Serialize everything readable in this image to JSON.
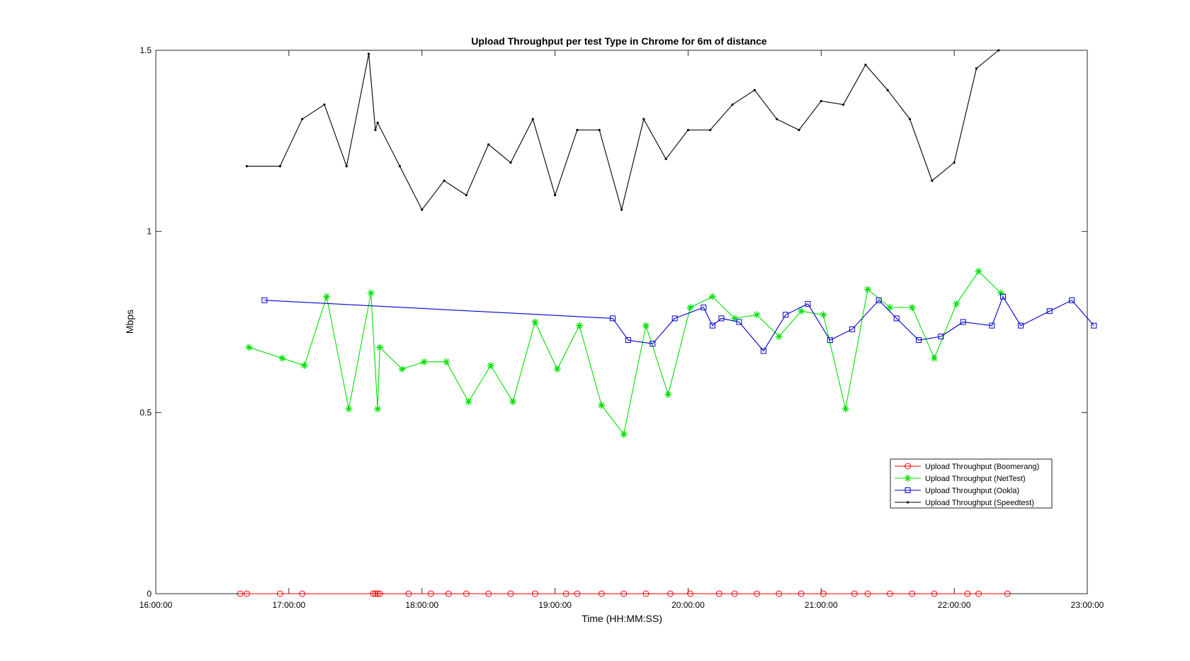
{
  "chart_data": {
    "type": "line",
    "title": "Upload Throughput per test Type in Chrome for 6m of distance",
    "xlabel": "Time (HH:MM:SS)",
    "ylabel": "Mbps",
    "xlim": [
      "16:00:00",
      "23:00:00"
    ],
    "ylim": [
      0,
      1.5
    ],
    "x_ticks": [
      "16:00:00",
      "17:00:00",
      "18:00:00",
      "19:00:00",
      "20:00:00",
      "21:00:00",
      "22:00:00",
      "23:00:00"
    ],
    "y_ticks": [
      "0",
      "0.5",
      "1",
      "1.5"
    ],
    "grid": false,
    "legend_position": "lower-right",
    "series": [
      {
        "name": "Upload Throughput (Boomerang)",
        "color": "#ff0000",
        "marker": "circle",
        "x": [
          "16:38:00",
          "16:41:00",
          "16:56:00",
          "17:06:00",
          "17:38:00",
          "17:39:00",
          "17:40:00",
          "17:41:00",
          "17:54:00",
          "18:04:00",
          "18:12:00",
          "18:20:00",
          "18:30:00",
          "18:40:00",
          "18:51:00",
          "19:05:00",
          "19:10:00",
          "19:21:00",
          "19:31:00",
          "19:41:00",
          "19:52:00",
          "20:01:00",
          "20:14:00",
          "20:21:00",
          "20:31:00",
          "20:41:00",
          "20:51:00",
          "21:01:00",
          "21:15:00",
          "21:21:00",
          "21:31:00",
          "21:41:00",
          "21:51:00",
          "22:06:00",
          "22:11:00",
          "22:24:00"
        ],
        "y": [
          0,
          0,
          0,
          0,
          0,
          0,
          0,
          0,
          0,
          0,
          0,
          0,
          0,
          0,
          0,
          0,
          0,
          0,
          0,
          0,
          0,
          0,
          0,
          0,
          0,
          0,
          0,
          0,
          0,
          0,
          0,
          0,
          0,
          0,
          0,
          0
        ]
      },
      {
        "name": "Upload Throughput (NetTest)",
        "color": "#00e000",
        "marker": "asterisk",
        "x": [
          "16:42:00",
          "16:57:00",
          "17:07:00",
          "17:17:00",
          "17:27:00",
          "17:37:00",
          "17:40:00",
          "17:41:00",
          "17:51:00",
          "18:01:00",
          "18:11:00",
          "18:21:00",
          "18:31:00",
          "18:41:00",
          "18:51:00",
          "19:01:00",
          "19:11:00",
          "19:21:00",
          "19:31:00",
          "19:41:00",
          "19:51:00",
          "20:01:00",
          "20:11:00",
          "20:21:00",
          "20:31:00",
          "20:41:00",
          "20:51:00",
          "21:01:00",
          "21:11:00",
          "21:21:00",
          "21:31:00",
          "21:41:00",
          "21:51:00",
          "22:01:00",
          "22:11:00",
          "22:21:00"
        ],
        "y": [
          0.68,
          0.65,
          0.63,
          0.82,
          0.51,
          0.83,
          0.51,
          0.68,
          0.62,
          0.64,
          0.64,
          0.53,
          0.63,
          0.53,
          0.75,
          0.62,
          0.74,
          0.52,
          0.44,
          0.74,
          0.55,
          0.79,
          0.82,
          0.76,
          0.77,
          0.71,
          0.78,
          0.77,
          0.51,
          0.84,
          0.79,
          0.79,
          0.65,
          0.8,
          0.89,
          0.83
        ]
      },
      {
        "name": "Upload Throughput (Ookla)",
        "color": "#0000cc",
        "marker": "square",
        "x": [
          "16:49:00",
          "19:26:00",
          "19:33:00",
          "19:44:00",
          "19:54:00",
          "20:07:00",
          "20:11:00",
          "20:15:00",
          "20:23:00",
          "20:34:00",
          "20:44:00",
          "20:54:00",
          "21:04:00",
          "21:14:00",
          "21:26:00",
          "21:34:00",
          "21:44:00",
          "21:54:00",
          "22:04:00",
          "22:17:00",
          "22:22:00",
          "22:30:00",
          "22:43:00",
          "22:53:00",
          "23:03:00"
        ],
        "y": [
          0.81,
          0.76,
          0.7,
          0.69,
          0.76,
          0.79,
          0.74,
          0.76,
          0.75,
          0.67,
          0.77,
          0.8,
          0.7,
          0.73,
          0.81,
          0.76,
          0.7,
          0.71,
          0.75,
          0.74,
          0.82,
          0.74,
          0.78,
          0.81,
          0.74
        ]
      },
      {
        "name": "Upload Throughput (Speedtest)",
        "color": "#000000",
        "marker": "dot",
        "x": [
          "16:41:00",
          "16:56:00",
          "17:06:00",
          "17:16:00",
          "17:26:00",
          "17:36:00",
          "17:39:00",
          "17:40:00",
          "17:50:00",
          "18:00:00",
          "18:10:00",
          "18:20:00",
          "18:30:00",
          "18:40:00",
          "18:50:00",
          "19:00:00",
          "19:10:00",
          "19:20:00",
          "19:30:00",
          "19:40:00",
          "19:50:00",
          "20:00:00",
          "20:10:00",
          "20:20:00",
          "20:30:00",
          "20:40:00",
          "20:50:00",
          "21:00:00",
          "21:10:00",
          "21:20:00",
          "21:30:00",
          "21:40:00",
          "21:50:00",
          "22:00:00",
          "22:10:00",
          "22:20:00"
        ],
        "y": [
          1.18,
          1.18,
          1.31,
          1.35,
          1.18,
          1.49,
          1.28,
          1.3,
          1.18,
          1.06,
          1.14,
          1.1,
          1.24,
          1.19,
          1.31,
          1.1,
          1.28,
          1.28,
          1.06,
          1.31,
          1.2,
          1.28,
          1.28,
          1.35,
          1.39,
          1.31,
          1.28,
          1.36,
          1.35,
          1.46,
          1.39,
          1.31,
          1.14,
          1.19,
          1.45,
          1.5
        ]
      }
    ]
  }
}
